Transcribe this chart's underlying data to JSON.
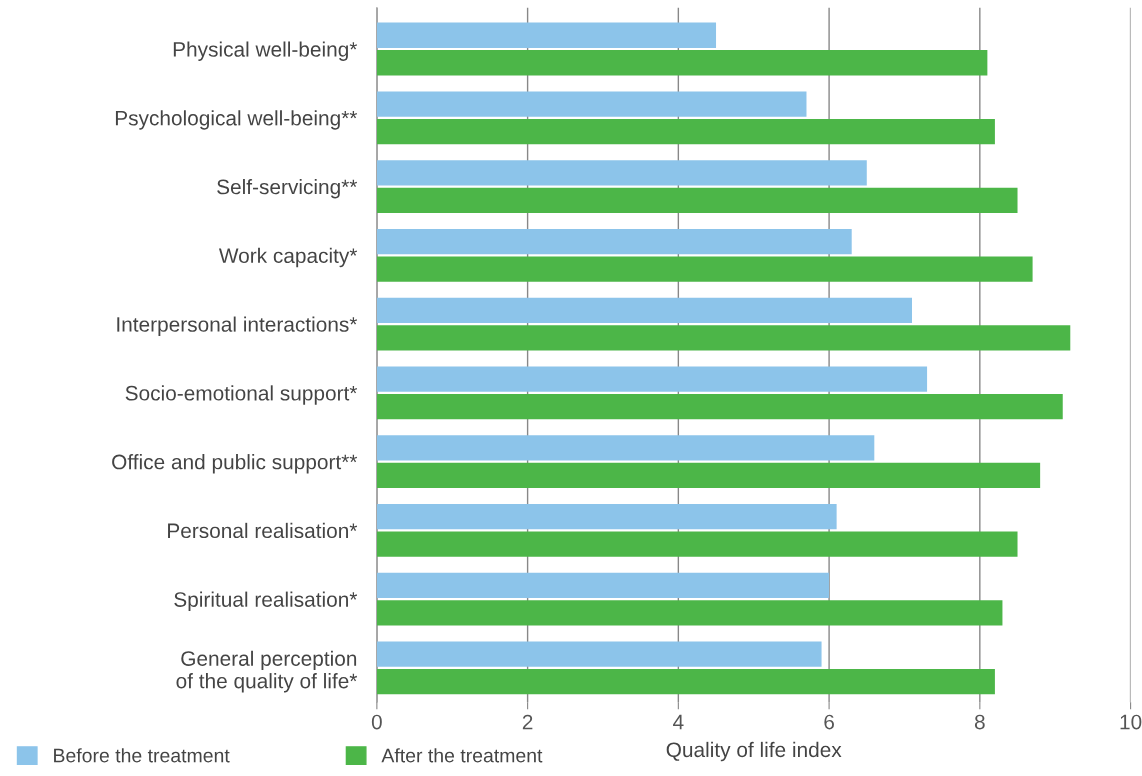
{
  "chart_data": {
    "type": "bar",
    "orientation": "horizontal",
    "xlabel": "Quality of life index",
    "categories": [
      "Physical well-being*",
      "Psychological well-being**",
      "Self-servicing**",
      "Work capacity*",
      "Interpersonal interactions*",
      "Socio-emotional support*",
      "Office and public support**",
      "Personal realisation*",
      "Spiritual realisation*",
      "General perception\nof the quality of life*"
    ],
    "series": [
      {
        "name": "Before the treatment",
        "color": "#8cc4ea",
        "values": [
          4.5,
          5.7,
          6.5,
          6.3,
          7.1,
          7.3,
          6.6,
          6.1,
          6.0,
          5.9
        ]
      },
      {
        "name": "After the treatment",
        "color": "#4cb648",
        "values": [
          8.1,
          8.2,
          8.5,
          8.7,
          9.2,
          9.1,
          8.8,
          8.5,
          8.3,
          8.2
        ]
      }
    ],
    "xlim": [
      0,
      10
    ],
    "xticks": [
      0,
      2,
      4,
      6,
      8,
      10
    ],
    "grid": "x",
    "legend": "bottom left"
  }
}
